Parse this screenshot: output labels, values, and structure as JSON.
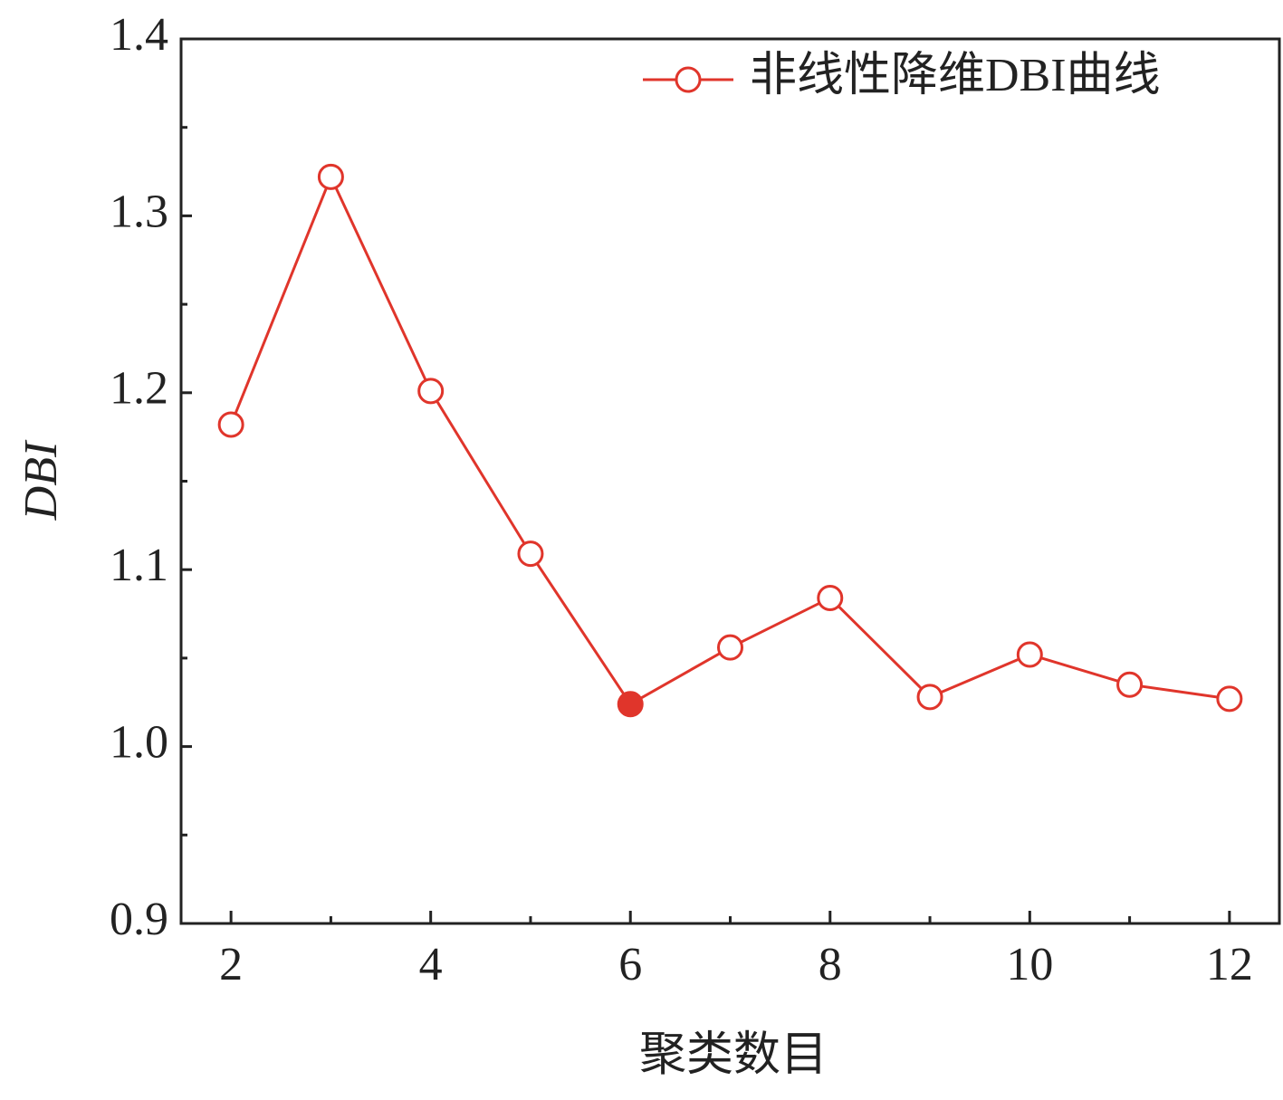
{
  "chart_data": {
    "type": "line",
    "x_label": "聚类数目",
    "y_label": "DBI",
    "x": [
      2,
      3,
      4,
      5,
      6,
      7,
      8,
      9,
      10,
      11,
      12
    ],
    "series": [
      {
        "name": "非线性降维DBI曲线",
        "color": "#e0352b",
        "values": [
          1.182,
          1.322,
          1.201,
          1.109,
          1.024,
          1.056,
          1.084,
          1.028,
          1.052,
          1.035,
          1.027
        ],
        "marker_fills": [
          "#ffffff",
          "#ffffff",
          "#ffffff",
          "#ffffff",
          "#e0352b",
          "#ffffff",
          "#ffffff",
          "#ffffff",
          "#ffffff",
          "#ffffff",
          "#ffffff"
        ]
      }
    ],
    "xlim": [
      1.5,
      12.5
    ],
    "xticks": [
      2,
      4,
      6,
      8,
      10,
      12
    ],
    "xminorticks": [
      3,
      5,
      7,
      9,
      11
    ],
    "ylim": [
      0.9,
      1.4
    ],
    "yticks": [
      0.9,
      {
        "value": 1,
        "label": "1.0"
      },
      1.1,
      1.2,
      1.3,
      1.4
    ],
    "yminorticks": [
      0.95,
      1.05,
      1.15,
      1.25,
      1.35
    ],
    "legend": "upper right",
    "grid": false
  }
}
